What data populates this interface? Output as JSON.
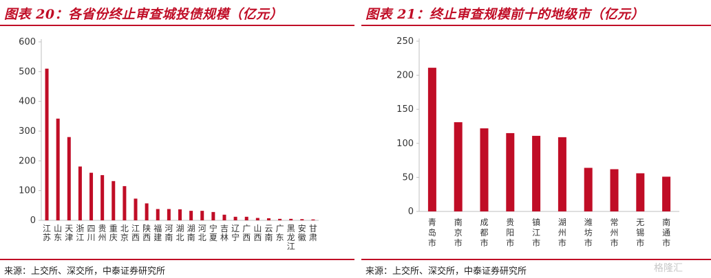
{
  "left": {
    "title": "图表 20：各省份终止审查城投债规模（亿元）",
    "source": "来源：上交所、深交所，中泰证券研究所"
  },
  "right": {
    "title": "图表 21：终止审查规模前十的地级市（亿元）",
    "source": "来源：上交所、深交所，中泰证券研究所",
    "watermark": "格隆汇"
  },
  "colors": {
    "accent": "#c00d26",
    "bar": "#c00d26",
    "axis": "#bfbfbf"
  },
  "chart_data": [
    {
      "type": "bar",
      "title": "",
      "categories": [
        "江苏",
        "山东",
        "天津",
        "浙江",
        "四川",
        "贵州",
        "重庆",
        "北京",
        "江西",
        "陕西",
        "福建",
        "河南",
        "湖北",
        "湖南",
        "河北",
        "宁夏",
        "吉林",
        "辽宁",
        "广西",
        "山西",
        "云南",
        "广东",
        "黑龙江",
        "安徽",
        "甘肃"
      ],
      "values": [
        510,
        342,
        280,
        181,
        160,
        152,
        132,
        115,
        73,
        57,
        38,
        38,
        37,
        32,
        32,
        28,
        19,
        12,
        12,
        8,
        7,
        5,
        5,
        4,
        3
      ],
      "ylim": [
        0,
        600
      ],
      "yticks": [
        0,
        100,
        200,
        300,
        400,
        500,
        600
      ],
      "xlabel": "",
      "ylabel": "",
      "grid": false,
      "legend": "none"
    },
    {
      "type": "bar",
      "title": "",
      "categories": [
        "青岛市",
        "南京市",
        "成都市",
        "贵阳市",
        "镇江市",
        "湖州市",
        "潍坊市",
        "常州市",
        "无锡市",
        "南通市"
      ],
      "values": [
        211,
        131,
        122,
        115,
        111,
        109,
        64,
        62,
        56,
        51
      ],
      "ylim": [
        0,
        250
      ],
      "yticks": [
        0,
        50,
        100,
        150,
        200,
        250
      ],
      "xlabel": "",
      "ylabel": "",
      "grid": false,
      "legend": "none"
    }
  ]
}
